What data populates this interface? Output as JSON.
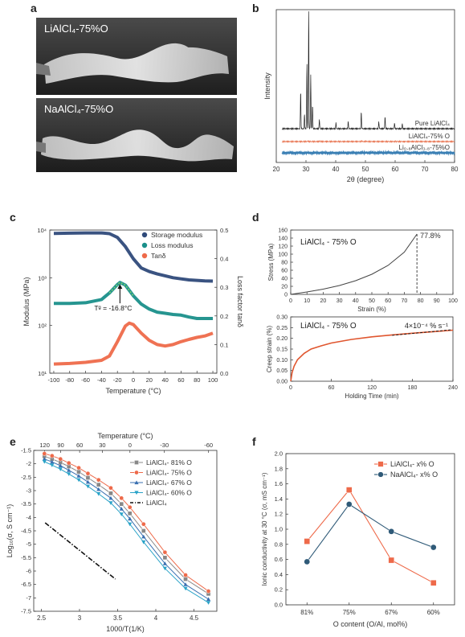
{
  "figure": {
    "panels": {
      "a": {
        "letter": "a",
        "photos": [
          {
            "label": "LiAlCl₄-75%O"
          },
          {
            "label": "NaAlCl₄-75%O"
          }
        ]
      },
      "b": {
        "letter": "b"
      },
      "c": {
        "letter": "c"
      },
      "d": {
        "letter": "d"
      },
      "e": {
        "letter": "e"
      },
      "f": {
        "letter": "f"
      }
    }
  },
  "chart_data": [
    {
      "id": "b",
      "type": "line",
      "xlabel": "2θ (degree)",
      "ylabel": "Intensity",
      "xlim": [
        20,
        80
      ],
      "xticks": [
        "20",
        "30",
        "40",
        "50",
        "60",
        "70",
        "80"
      ],
      "series": [
        {
          "name": "Pure LiAlCl₄",
          "color": "#222222",
          "peaks": [
            [
              28.2,
              0.32
            ],
            [
              29.5,
              0.12
            ],
            [
              30.3,
              0.55
            ],
            [
              30.9,
              1.0
            ],
            [
              31.6,
              0.45
            ],
            [
              32.2,
              0.2
            ],
            [
              34.5,
              0.08
            ],
            [
              40.1,
              0.05
            ],
            [
              44.2,
              0.06
            ],
            [
              48.6,
              0.14
            ],
            [
              54.5,
              0.06
            ],
            [
              56.6,
              0.1
            ],
            [
              59.8,
              0.05
            ],
            [
              62.4,
              0.04
            ]
          ]
        },
        {
          "name": "LiAlCl₄-75% O",
          "color": "#e8734f",
          "peaks": [
            [
              30.6,
              0.06
            ],
            [
              34.7,
              0.04
            ],
            [
              48.7,
              0.05
            ],
            [
              50.2,
              0.04
            ],
            [
              60.1,
              0.03
            ]
          ]
        },
        {
          "name": "Li₀.₈AlCl₃.₈-75%O",
          "color": "#3a7fb4",
          "peaks": []
        }
      ]
    },
    {
      "id": "c",
      "type": "line",
      "xlabel": "Temperature (°C)",
      "ylabel": "Modulus (MPa)",
      "ylabel_right": "Loss factor tanδ",
      "xlim": [
        -105,
        105
      ],
      "ylim_log": [
        1,
        4
      ],
      "ylim_right": [
        0,
        0.5
      ],
      "xticks": [
        "-100",
        "-80",
        "-60",
        "-40",
        "-20",
        "0",
        "20",
        "40",
        "60",
        "80",
        "100"
      ],
      "yticks": [
        "10¹",
        "10²",
        "10³",
        "10⁴"
      ],
      "yticks_right": [
        "0.0",
        "0.1",
        "0.2",
        "0.3",
        "0.4",
        "0.5"
      ],
      "annotation": "Tᵍ = -16.8°C",
      "series": [
        {
          "name": "Storage modulus",
          "color": "#2f4a7a",
          "axis": "left",
          "x": [
            -100,
            -80,
            -60,
            -40,
            -30,
            -20,
            -10,
            0,
            10,
            20,
            30,
            40,
            50,
            60,
            70,
            80,
            90,
            100
          ],
          "y": [
            8500,
            8600,
            8700,
            8700,
            8400,
            7000,
            4500,
            2500,
            1600,
            1350,
            1200,
            1100,
            1000,
            950,
            900,
            880,
            860,
            850
          ]
        },
        {
          "name": "Loss modulus",
          "color": "#1a8f8a",
          "axis": "left",
          "x": [
            -100,
            -80,
            -60,
            -40,
            -30,
            -20,
            -16.8,
            -10,
            0,
            10,
            20,
            30,
            40,
            50,
            60,
            70,
            80,
            90,
            100
          ],
          "y": [
            290,
            290,
            300,
            350,
            480,
            720,
            800,
            700,
            420,
            280,
            220,
            190,
            180,
            170,
            165,
            150,
            140,
            140,
            140
          ]
        },
        {
          "name": "Tanδ",
          "color": "#ee6a4a",
          "axis": "right",
          "x": [
            -100,
            -80,
            -60,
            -40,
            -30,
            -20,
            -10,
            -5,
            0,
            10,
            20,
            30,
            40,
            50,
            60,
            70,
            80,
            90,
            100
          ],
          "y": [
            0.032,
            0.034,
            0.038,
            0.045,
            0.06,
            0.11,
            0.165,
            0.175,
            0.17,
            0.14,
            0.115,
            0.1,
            0.095,
            0.1,
            0.11,
            0.118,
            0.125,
            0.13,
            0.14
          ]
        }
      ]
    },
    {
      "id": "d-top",
      "type": "line",
      "annotation_label": "LiAlCl₄ - 75% O",
      "xlabel": "Strain (%)",
      "ylabel": "Stress (MPa)",
      "xlim": [
        0,
        100
      ],
      "ylim": [
        0,
        160
      ],
      "xticks": [
        "0",
        "10",
        "20",
        "30",
        "40",
        "50",
        "60",
        "70",
        "80",
        "90",
        "100"
      ],
      "yticks": [
        "0",
        "20",
        "40",
        "60",
        "80",
        "100",
        "120",
        "140",
        "160"
      ],
      "break_label": "77.8%",
      "series": [
        {
          "name": "",
          "color": "#444444",
          "x": [
            0,
            10,
            20,
            30,
            40,
            50,
            60,
            70,
            77.8
          ],
          "y": [
            0,
            6,
            13,
            22,
            34,
            50,
            72,
            105,
            150
          ]
        }
      ]
    },
    {
      "id": "d-bottom",
      "type": "line",
      "annotation_label": "LiAlCl₄ - 75% O",
      "rate_label": "4×10⁻⁴ % s⁻¹",
      "xlabel": "Holding Time (min)",
      "ylabel": "Creep strain (%)",
      "xlim": [
        0,
        240
      ],
      "ylim": [
        0,
        0.3
      ],
      "xticks": [
        "0",
        "60",
        "120",
        "180",
        "240"
      ],
      "yticks": [
        "0.00",
        "0.05",
        "0.10",
        "0.15",
        "0.20",
        "0.25",
        "0.30"
      ],
      "series": [
        {
          "name": "",
          "color": "#e0562f",
          "x": [
            0,
            2,
            5,
            10,
            20,
            30,
            45,
            60,
            90,
            120,
            150,
            180,
            210,
            240
          ],
          "y": [
            0,
            0.04,
            0.07,
            0.1,
            0.13,
            0.15,
            0.165,
            0.178,
            0.195,
            0.207,
            0.216,
            0.224,
            0.231,
            0.238
          ]
        }
      ]
    },
    {
      "id": "e",
      "type": "line",
      "xlabel": "1000/T(1/K)",
      "xlabel_top": "Temperature (°C)",
      "ylabel": "Log₁₀(σ, S cm⁻¹)",
      "xlim": [
        2.4,
        4.8
      ],
      "ylim": [
        -7.5,
        -1.5
      ],
      "xticks": [
        "2.5",
        "3",
        "3.5",
        "4",
        "4.5"
      ],
      "yticks": [
        "-1.5",
        "-2",
        "-2.5",
        "-3",
        "-3.5",
        "-4",
        "-4.5",
        "-5",
        "-5.5",
        "-6",
        "-6.5",
        "-7",
        "-7.5"
      ],
      "xticks_top": [
        "120",
        "90",
        "60",
        "30",
        "0",
        "-30",
        "-60"
      ],
      "series": [
        {
          "name": "LiAlCl₄- 81% O",
          "color": "#888888",
          "marker": "square",
          "x": [
            2.54,
            2.64,
            2.75,
            2.86,
            2.99,
            3.11,
            3.25,
            3.41,
            3.55,
            3.66,
            3.84,
            4.12,
            4.39,
            4.69
          ],
          "y": [
            -1.72,
            -1.82,
            -1.95,
            -2.1,
            -2.3,
            -2.52,
            -2.78,
            -3.1,
            -3.5,
            -3.85,
            -4.5,
            -5.5,
            -6.3,
            -6.85
          ]
        },
        {
          "name": "LiAlCl₄- 75% O",
          "color": "#ee6a4a",
          "marker": "circle",
          "x": [
            2.54,
            2.64,
            2.75,
            2.86,
            2.99,
            3.11,
            3.25,
            3.41,
            3.55,
            3.66,
            3.84,
            4.12,
            4.39,
            4.69
          ],
          "y": [
            -1.62,
            -1.7,
            -1.82,
            -1.97,
            -2.15,
            -2.36,
            -2.6,
            -2.9,
            -3.28,
            -3.62,
            -4.25,
            -5.3,
            -6.15,
            -6.75
          ]
        },
        {
          "name": "LiAlCl₄- 67% O",
          "color": "#3a6fb0",
          "marker": "triangle",
          "x": [
            2.54,
            2.64,
            2.75,
            2.86,
            2.99,
            3.11,
            3.25,
            3.41,
            3.55,
            3.66,
            3.84,
            4.12,
            4.39,
            4.69
          ],
          "y": [
            -1.82,
            -1.93,
            -2.07,
            -2.24,
            -2.45,
            -2.68,
            -2.95,
            -3.28,
            -3.68,
            -4.05,
            -4.72,
            -5.72,
            -6.5,
            -7.05
          ]
        },
        {
          "name": "LiAlCl₄- 60% O",
          "color": "#2aa3c8",
          "marker": "triangle-down",
          "x": [
            2.54,
            2.64,
            2.75,
            2.86,
            2.99,
            3.11,
            3.25,
            3.41,
            3.55,
            3.66,
            3.84,
            4.12,
            4.39,
            4.69
          ],
          "y": [
            -1.92,
            -2.05,
            -2.2,
            -2.38,
            -2.6,
            -2.84,
            -3.12,
            -3.46,
            -3.88,
            -4.25,
            -4.92,
            -5.9,
            -6.65,
            -7.18
          ]
        },
        {
          "name": "LiAlCl₄",
          "color": "#111111",
          "marker": "none",
          "dash": true,
          "x": [
            2.55,
            3.47
          ],
          "y": [
            -4.2,
            -6.3
          ]
        }
      ]
    },
    {
      "id": "f",
      "type": "line",
      "xlabel": "O content (O/Al, mol%)",
      "ylabel": "Ionic conductivity at 30 °C (σ, mS cm⁻¹)",
      "categories": [
        "81%",
        "75%",
        "67%",
        "60%"
      ],
      "ylim": [
        0,
        2.0
      ],
      "yticks": [
        "0.0",
        "0.2",
        "0.4",
        "0.6",
        "0.8",
        "1.0",
        "1.2",
        "1.4",
        "1.6",
        "1.8",
        "2.0"
      ],
      "series": [
        {
          "name": "LiAlCl₄- x% O",
          "color": "#ee6a4a",
          "marker": "square",
          "values": [
            0.84,
            1.52,
            0.59,
            0.29
          ]
        },
        {
          "name": "NaAlCl₄- x% O",
          "color": "#2f5a78",
          "marker": "circle",
          "values": [
            0.57,
            1.33,
            0.97,
            0.76
          ]
        }
      ]
    }
  ]
}
